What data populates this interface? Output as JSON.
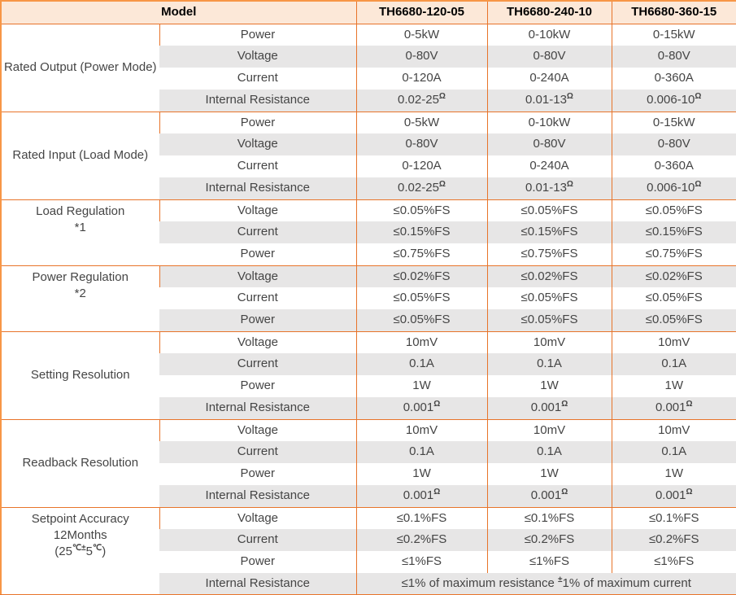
{
  "colors": {
    "border_inner": "#E8742A",
    "border_outer": "#F79646",
    "header_bg": "#FCE8D8",
    "row_alt_bg": "#E7E6E6",
    "body_text": "#454545",
    "header_text": "#000000"
  },
  "table": {
    "header": {
      "model_label": "Model",
      "models": [
        "TH6680-120-05",
        "TH6680-240-10",
        "TH6680-360-15"
      ]
    },
    "groups": [
      {
        "label": "Rated Output (Power Mode)",
        "rows": [
          {
            "param": "Power",
            "values": [
              "0-5kW",
              "0-10kW",
              "0-15kW"
            ]
          },
          {
            "param": "Voltage",
            "values": [
              "0-80V",
              "0-80V",
              "0-80V"
            ]
          },
          {
            "param": "Current",
            "values": [
              "0-120A",
              "0-240A",
              "0-360A"
            ]
          },
          {
            "param": "Internal Resistance",
            "values": [
              "0.02-25^{Ω}",
              "0.01-13^{Ω}",
              "0.006-10^{Ω}"
            ]
          }
        ]
      },
      {
        "label": "Rated Input (Load Mode)",
        "rows": [
          {
            "param": "Power",
            "values": [
              "0-5kW",
              "0-10kW",
              "0-15kW"
            ]
          },
          {
            "param": "Voltage",
            "values": [
              "0-80V",
              "0-80V",
              "0-80V"
            ]
          },
          {
            "param": "Current",
            "values": [
              "0-120A",
              "0-240A",
              "0-360A"
            ]
          },
          {
            "param": "Internal Resistance",
            "values": [
              "0.02-25^{Ω}",
              "0.01-13^{Ω}",
              "0.006-10^{Ω}"
            ]
          }
        ]
      },
      {
        "label": "Load Regulation\n*1",
        "rows": [
          {
            "param": "Voltage",
            "values": [
              "≤0.05%FS",
              "≤0.05%FS",
              "≤0.05%FS"
            ]
          },
          {
            "param": "Current",
            "values": [
              "≤0.15%FS",
              "≤0.15%FS",
              "≤0.15%FS"
            ]
          },
          {
            "param": "Power",
            "values": [
              "≤0.75%FS",
              "≤0.75%FS",
              "≤0.75%FS"
            ]
          }
        ]
      },
      {
        "label": "Power Regulation\n*2",
        "rows": [
          {
            "param": "Voltage",
            "values": [
              "≤0.02%FS",
              "≤0.02%FS",
              "≤0.02%FS"
            ]
          },
          {
            "param": "Current",
            "values": [
              "≤0.05%FS",
              "≤0.05%FS",
              "≤0.05%FS"
            ]
          },
          {
            "param": "Power",
            "values": [
              "≤0.05%FS",
              "≤0.05%FS",
              "≤0.05%FS"
            ]
          }
        ]
      },
      {
        "label": "Setting Resolution",
        "rows": [
          {
            "param": "Voltage",
            "values": [
              "10mV",
              "10mV",
              "10mV"
            ]
          },
          {
            "param": "Current",
            "values": [
              "0.1A",
              "0.1A",
              "0.1A"
            ]
          },
          {
            "param": "Power",
            "values": [
              "1W",
              "1W",
              "1W"
            ]
          },
          {
            "param": "Internal Resistance",
            "values": [
              "0.001^{Ω}",
              "0.001^{Ω}",
              "0.001^{Ω}"
            ]
          }
        ]
      },
      {
        "label": "Readback Resolution",
        "rows": [
          {
            "param": "Voltage",
            "values": [
              "10mV",
              "10mV",
              "10mV"
            ]
          },
          {
            "param": "Current",
            "values": [
              "0.1A",
              "0.1A",
              "0.1A"
            ]
          },
          {
            "param": "Power",
            "values": [
              "1W",
              "1W",
              "1W"
            ]
          },
          {
            "param": "Internal Resistance",
            "values": [
              "0.001^{Ω}",
              "0.001^{Ω}",
              "0.001^{Ω}"
            ]
          }
        ]
      },
      {
        "label": "Setpoint Accuracy 12Months\n(25^{℃±}5^{℃})",
        "rows": [
          {
            "param": "Voltage",
            "values": [
              "≤0.1%FS",
              "≤0.1%FS",
              "≤0.1%FS"
            ]
          },
          {
            "param": "Current",
            "values": [
              "≤0.2%FS",
              "≤0.2%FS",
              "≤0.2%FS"
            ]
          },
          {
            "param": "Power",
            "values": [
              "≤1%FS",
              "≤1%FS",
              "≤1%FS"
            ]
          },
          {
            "param": "Internal Resistance",
            "span_value": "≤1% of maximum resistance ^{±}1% of maximum current"
          }
        ]
      }
    ]
  }
}
